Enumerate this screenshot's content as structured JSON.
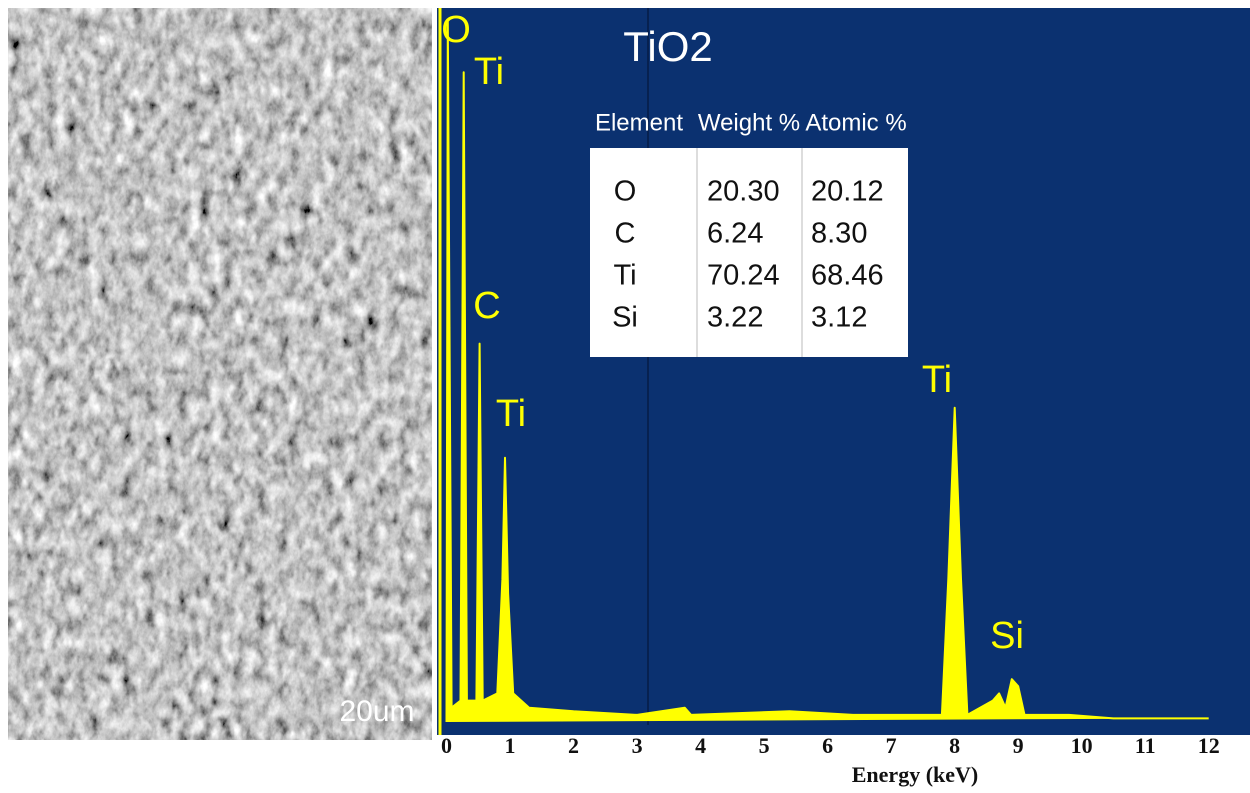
{
  "sem_image": {
    "scale_label": "20um"
  },
  "chart_data": {
    "type": "line",
    "title": "TiO2",
    "x_label": "Energy (keV)",
    "xlim": [
      -0.15,
      12.65
    ],
    "ylim": [
      0,
      100
    ],
    "xticks": [
      0,
      1,
      2,
      3,
      4,
      5,
      6,
      7,
      8,
      9,
      10,
      11,
      12
    ],
    "x": [
      0,
      0.02,
      0.08,
      0.22,
      0.27,
      0.32,
      0.47,
      0.52,
      0.57,
      0.8,
      0.88,
      0.92,
      0.97,
      1.05,
      1.3,
      2,
      3,
      3.75,
      3.85,
      5.4,
      6.4,
      7.8,
      7.9,
      8.0,
      8.1,
      8.2,
      8.6,
      8.7,
      8.8,
      8.9,
      9.0,
      9.1,
      9.8,
      10.5,
      12
    ],
    "series": [
      {
        "color": "#ffff00",
        "values": [
          0,
          98,
          2,
          3,
          91,
          3,
          3,
          53,
          3,
          4,
          20,
          37,
          18,
          4,
          2,
          1.5,
          1,
          2,
          1,
          1.5,
          1,
          1,
          20,
          44,
          20,
          1,
          3,
          4,
          2,
          6,
          5,
          1,
          1,
          0.5,
          0.5
        ]
      }
    ],
    "peak_labels": [
      "O",
      "Ti",
      "C",
      "Ti",
      "Ti",
      "Si"
    ],
    "table": {
      "header": [
        "Element",
        "Weight %",
        "Atomic %"
      ],
      "rows": [
        [
          "O",
          "20.30",
          "20.12"
        ],
        [
          "C",
          "6.24",
          "8.30"
        ],
        [
          "Ti",
          "70.24",
          "68.46"
        ],
        [
          "Si",
          "3.22",
          "3.12"
        ]
      ]
    }
  }
}
